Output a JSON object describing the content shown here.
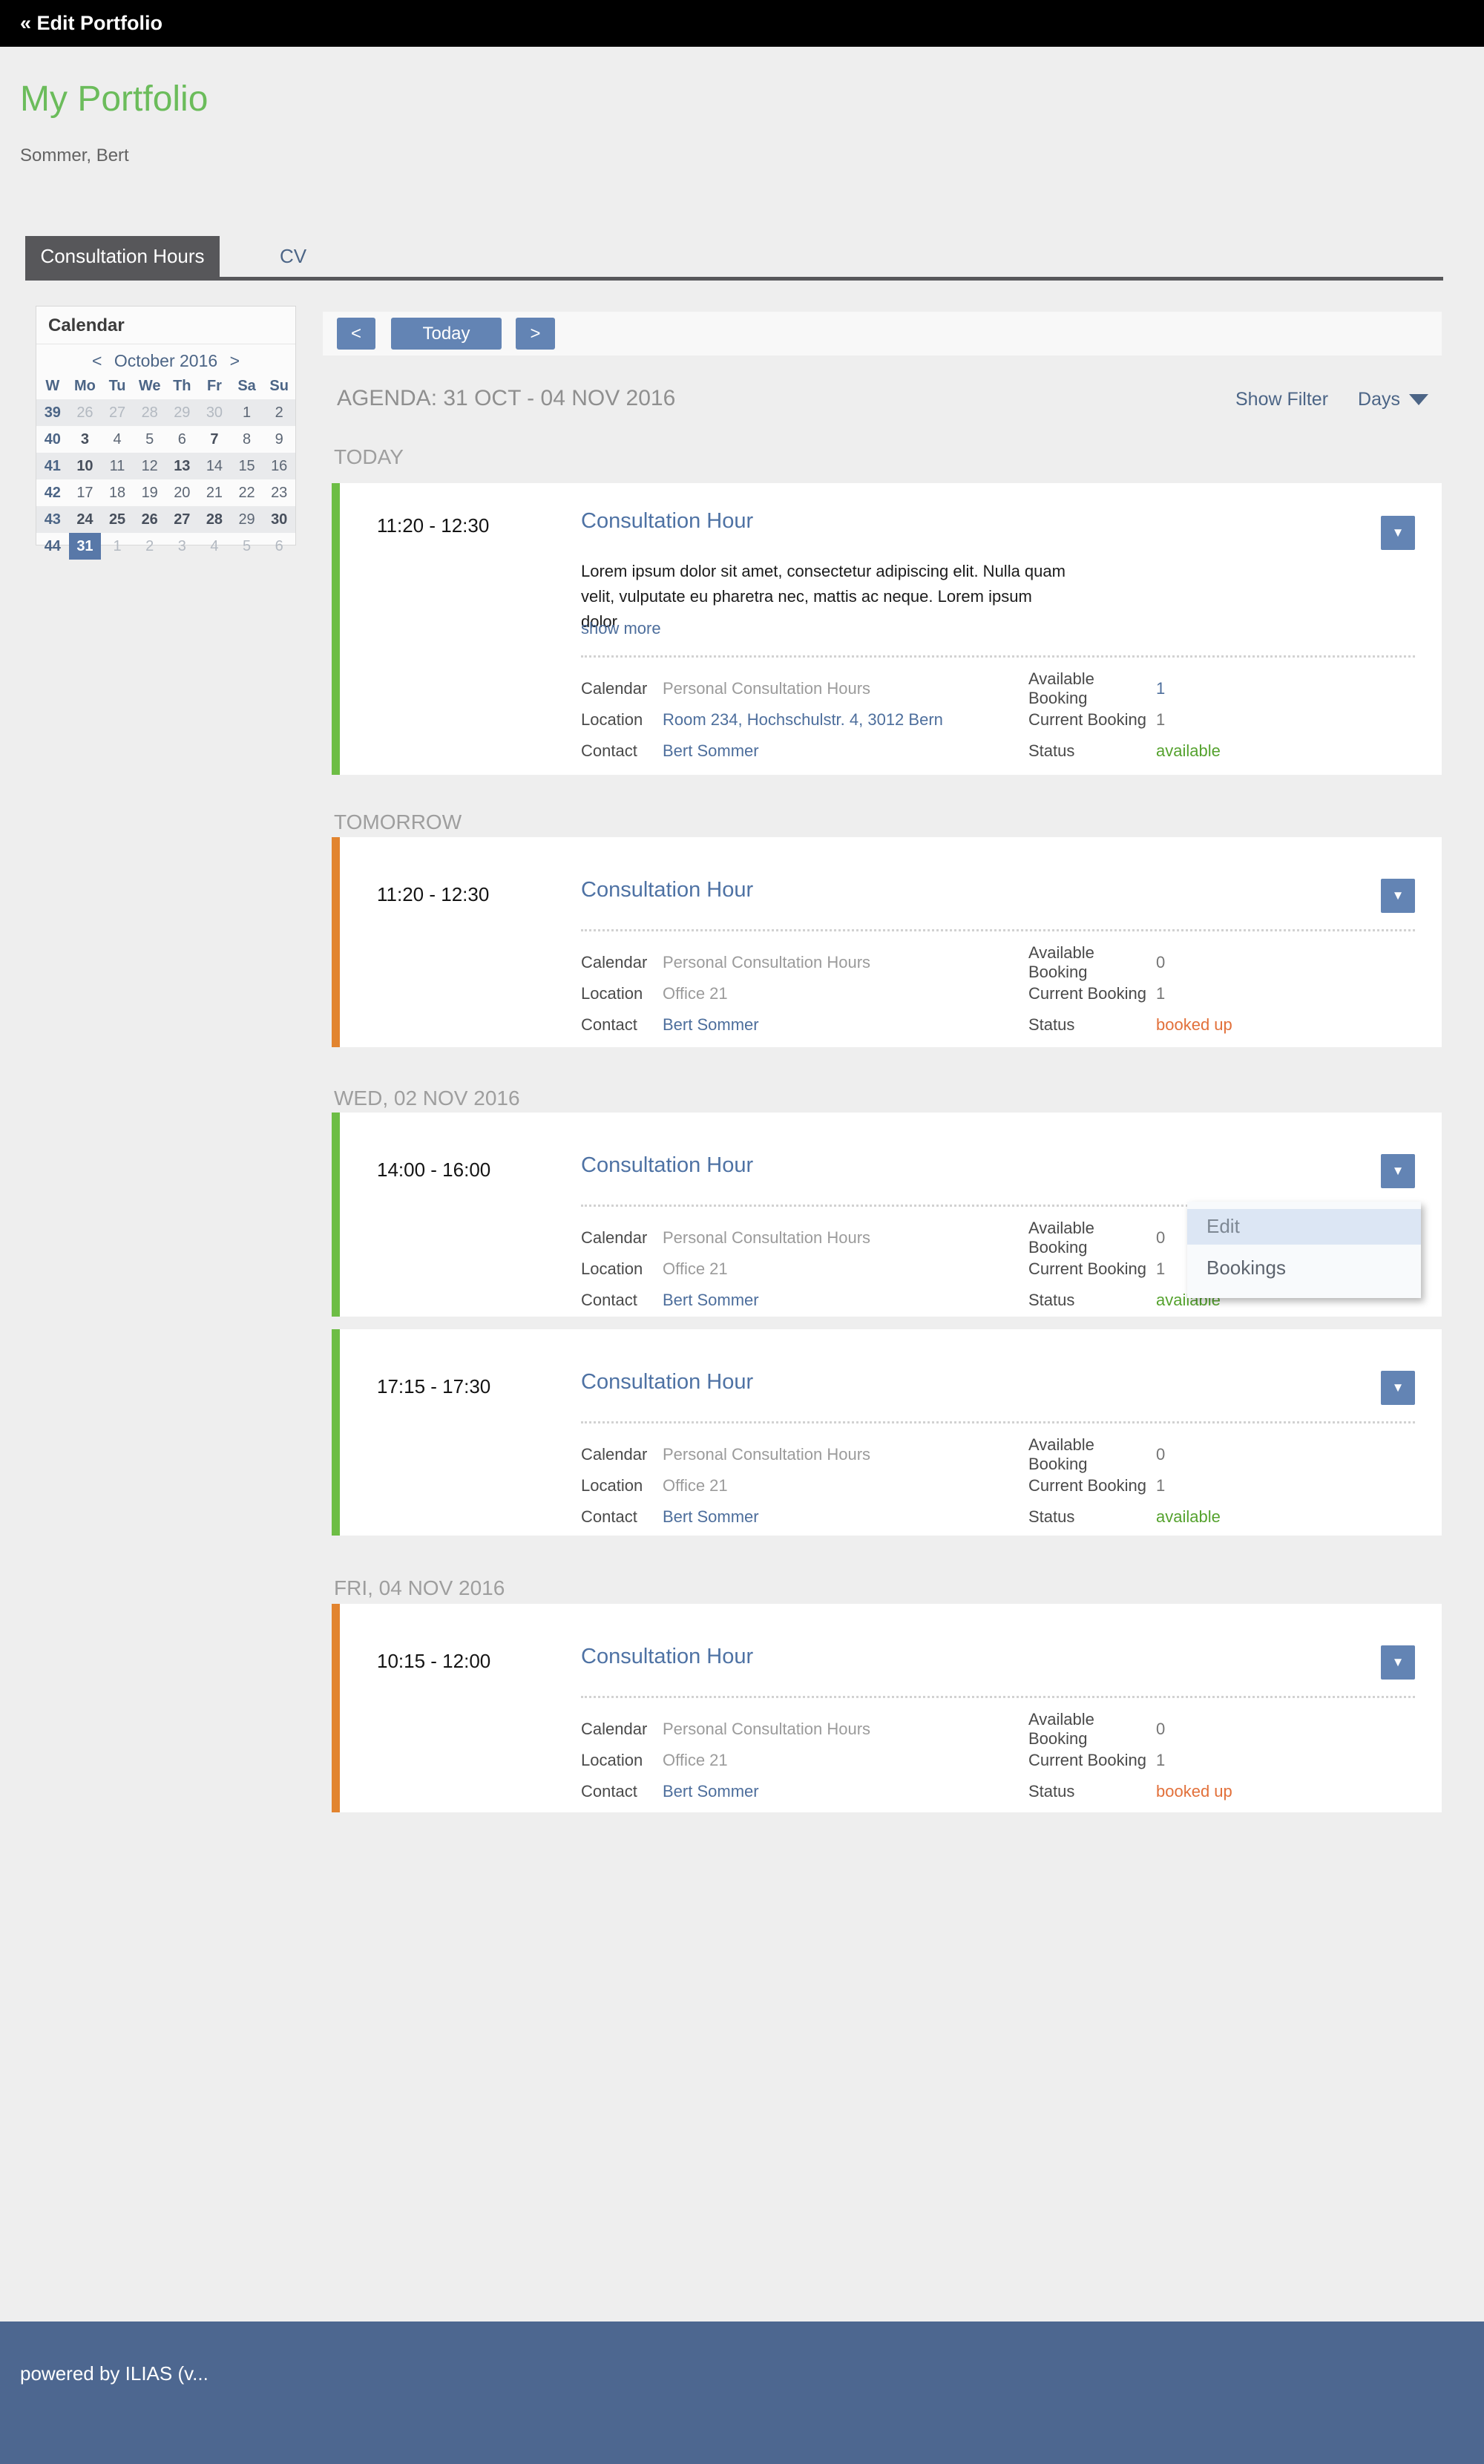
{
  "topbar": {
    "back_label": "« Edit Portfolio"
  },
  "header": {
    "title": "My Portfolio",
    "subtitle": "Sommer, Bert"
  },
  "tabs": {
    "consultation_hours": "Consultation Hours",
    "cv": "CV"
  },
  "calendar": {
    "panel_title": "Calendar",
    "nav": {
      "prev": "<",
      "label": "October 2016",
      "next": ">"
    },
    "day_headers": [
      "W",
      "Mo",
      "Tu",
      "We",
      "Th",
      "Fr",
      "Sa",
      "Su"
    ],
    "weeks": [
      {
        "w": "39",
        "days": [
          "26",
          "27",
          "28",
          "29",
          "30",
          "1",
          "2"
        ]
      },
      {
        "w": "40",
        "days": [
          "3",
          "4",
          "5",
          "6",
          "7",
          "8",
          "9"
        ]
      },
      {
        "w": "41",
        "days": [
          "10",
          "11",
          "12",
          "13",
          "14",
          "15",
          "16"
        ]
      },
      {
        "w": "42",
        "days": [
          "17",
          "18",
          "19",
          "20",
          "21",
          "22",
          "23"
        ]
      },
      {
        "w": "43",
        "days": [
          "24",
          "25",
          "26",
          "27",
          "28",
          "29",
          "30"
        ]
      },
      {
        "w": "44",
        "days": [
          "31",
          "1",
          "2",
          "3",
          "4",
          "5",
          "6"
        ]
      }
    ],
    "selected_day": "31"
  },
  "toolbar": {
    "prev_label": "<",
    "today_label": "Today",
    "next_label": ">"
  },
  "agenda": {
    "title": "AGENDA: 31 OCT - 04 NOV 2016",
    "show_filter_label": "Show Filter",
    "days_label": "Days"
  },
  "labels": {
    "calendar": "Calendar",
    "location": "Location",
    "contact": "Contact",
    "available_booking": "Available Booking",
    "current_booking": "Current Booking",
    "status": "Status"
  },
  "sections": [
    {
      "heading": "TODAY",
      "cards": [
        {
          "time": "11:20 - 12:30",
          "title": "Consultation Hour",
          "description": "Lorem ipsum dolor sit amet, consectetur adipiscing elit. Nulla quam velit, vulputate eu pharetra nec, mattis ac neque. Lorem ipsum dolor",
          "show_more": "show more",
          "calendar": "Personal Consultation Hours",
          "location": "Room 234, Hochschulstr. 4, 3012 Bern",
          "contact": "Bert Sommer",
          "available_booking": "1",
          "current_booking": "1",
          "status": "available"
        }
      ]
    },
    {
      "heading": "TOMORROW",
      "cards": [
        {
          "time": "11:20 - 12:30",
          "title": "Consultation Hour",
          "calendar": "Personal Consultation Hours",
          "location": "Office 21",
          "contact": "Bert Sommer",
          "available_booking": "0",
          "current_booking": "1",
          "status": "booked up"
        }
      ]
    },
    {
      "heading": "WED, 02 NOV 2016",
      "cards": [
        {
          "time": "14:00 - 16:00",
          "title": "Consultation Hour",
          "calendar": "Personal Consultation Hours",
          "location": "Office 21",
          "contact": "Bert Sommer",
          "available_booking": "0",
          "current_booking": "1",
          "status": "available"
        },
        {
          "time": "17:15 - 17:30",
          "title": "Consultation Hour",
          "calendar": "Personal Consultation Hours",
          "location": "Office 21",
          "contact": "Bert Sommer",
          "available_booking": "0",
          "current_booking": "1",
          "status": "available"
        }
      ]
    },
    {
      "heading": "FRI, 04 NOV 2016",
      "cards": [
        {
          "time": "10:15 - 12:00",
          "title": "Consultation Hour",
          "calendar": "Personal Consultation Hours",
          "location": "Office 21",
          "contact": "Bert Sommer",
          "available_booking": "0",
          "current_booking": "1",
          "status": "booked up"
        }
      ]
    }
  ],
  "menu": {
    "edit": "Edit",
    "bookings": "Bookings",
    "trigger_icon": "caret-down-icon"
  },
  "footer": {
    "powered_by": "powered by ILIAS (v..."
  },
  "colors": {
    "title_green": "#6bbc5b",
    "accent_green": "#6dbd45",
    "accent_orange": "#e2842f",
    "status_available": "#55a22e",
    "status_booked_up": "#e2703a",
    "primary_button_blue": "#6384b4",
    "link_blue": "#4d6e9c",
    "selected_day_blue": "#5878a8",
    "active_tab_gray": "#57575a",
    "footer_blue": "#4d6790"
  }
}
